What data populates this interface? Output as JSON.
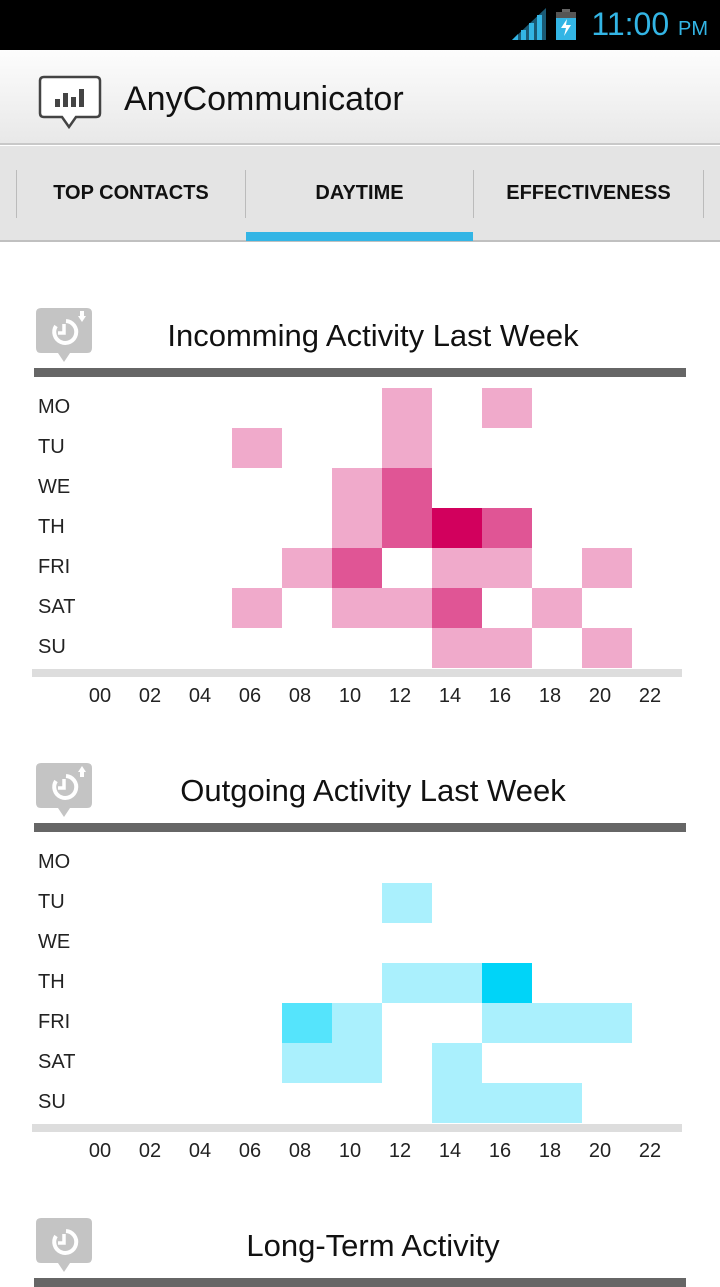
{
  "status_bar": {
    "time": "11:00",
    "ampm": "PM",
    "accent": "#33b5e5"
  },
  "app": {
    "title": "AnyCommunicator"
  },
  "tabs": [
    {
      "label": "TOP CONTACTS",
      "active": false
    },
    {
      "label": "DAYTIME",
      "active": true
    },
    {
      "label": "EFFECTIVENESS",
      "active": false
    }
  ],
  "sections": [
    {
      "title": "Incomming Activity Last Week",
      "icon": "clock-incoming-icon"
    },
    {
      "title": "Outgoing Activity Last Week",
      "icon": "clock-outgoing-icon"
    },
    {
      "title": "Long-Term Activity",
      "icon": "clock-icon"
    }
  ],
  "chart_data": [
    {
      "type": "heatmap",
      "title": "Incomming Activity Last Week",
      "rows": [
        "MO",
        "TU",
        "WE",
        "TH",
        "FRI",
        "SAT",
        "SU"
      ],
      "columns": [
        "00",
        "02",
        "04",
        "06",
        "08",
        "10",
        "12",
        "14",
        "16",
        "18",
        "20",
        "22"
      ],
      "colors": [
        "#ffffff",
        "#f0aacb",
        "#e05595",
        "#d2005d"
      ],
      "values": [
        [
          0,
          0,
          0,
          0,
          0,
          0,
          1,
          0,
          1,
          0,
          0,
          0
        ],
        [
          0,
          0,
          0,
          1,
          0,
          0,
          1,
          0,
          0,
          0,
          0,
          0
        ],
        [
          0,
          0,
          0,
          0,
          0,
          1,
          2,
          0,
          0,
          0,
          0,
          0
        ],
        [
          0,
          0,
          0,
          0,
          0,
          1,
          2,
          3,
          2,
          0,
          0,
          0
        ],
        [
          0,
          0,
          0,
          0,
          1,
          2,
          0,
          1,
          1,
          0,
          1,
          0
        ],
        [
          0,
          0,
          0,
          1,
          0,
          1,
          1,
          2,
          0,
          1,
          0,
          0
        ],
        [
          0,
          0,
          0,
          0,
          0,
          0,
          0,
          1,
          1,
          0,
          1,
          0
        ]
      ]
    },
    {
      "type": "heatmap",
      "title": "Outgoing Activity Last Week",
      "rows": [
        "MO",
        "TU",
        "WE",
        "TH",
        "FRI",
        "SAT",
        "SU"
      ],
      "columns": [
        "00",
        "02",
        "04",
        "06",
        "08",
        "10",
        "12",
        "14",
        "16",
        "18",
        "20",
        "22"
      ],
      "colors": [
        "#ffffff",
        "#aaf0fd",
        "#55e4fc",
        "#00d4f8"
      ],
      "values": [
        [
          0,
          0,
          0,
          0,
          0,
          0,
          0,
          0,
          0,
          0,
          0,
          0
        ],
        [
          0,
          0,
          0,
          0,
          0,
          0,
          1,
          0,
          0,
          0,
          0,
          0
        ],
        [
          0,
          0,
          0,
          0,
          0,
          0,
          0,
          0,
          0,
          0,
          0,
          0
        ],
        [
          0,
          0,
          0,
          0,
          0,
          0,
          1,
          1,
          3,
          0,
          0,
          0
        ],
        [
          0,
          0,
          0,
          0,
          2,
          1,
          0,
          0,
          1,
          1,
          1,
          0
        ],
        [
          0,
          0,
          0,
          0,
          1,
          1,
          0,
          1,
          0,
          0,
          0,
          0
        ],
        [
          0,
          0,
          0,
          0,
          0,
          0,
          0,
          1,
          1,
          1,
          0,
          0
        ]
      ]
    }
  ]
}
